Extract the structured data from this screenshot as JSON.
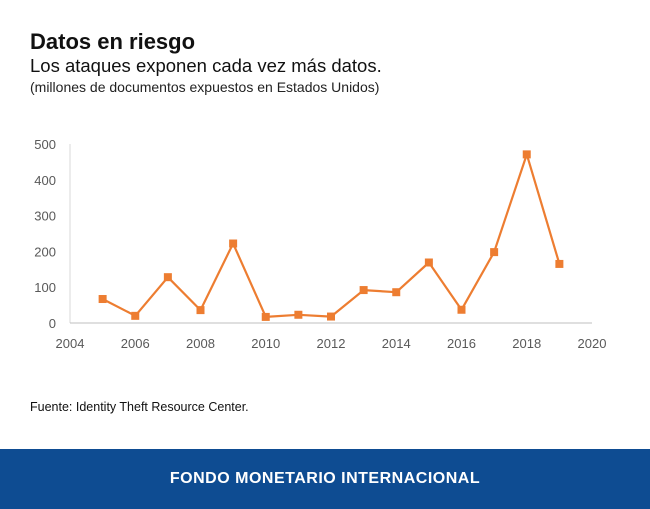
{
  "header": {
    "title": "Datos en riesgo",
    "subtitle": "Los ataques exponen cada vez más datos.",
    "note": "(millones de documentos expuestos en Estados Unidos)"
  },
  "source": "Fuente: Identity Theft Resource Center.",
  "footer": {
    "brand": "FONDO MONETARIO INTERNACIONAL"
  },
  "chart_data": {
    "type": "line",
    "title": "Datos en riesgo",
    "subtitle": "Los ataques exponen cada vez más datos.",
    "ylabel": "(millones de documentos expuestos en Estados Unidos)",
    "xlim": [
      2004,
      2020
    ],
    "ylim": [
      0,
      500
    ],
    "x_ticks": [
      2004,
      2006,
      2008,
      2010,
      2012,
      2014,
      2016,
      2018,
      2020
    ],
    "y_ticks": [
      0,
      100,
      200,
      300,
      400,
      500
    ],
    "grid": false,
    "legend": "none",
    "series": [
      {
        "color": "#ed7d31",
        "marker": "square",
        "x": [
          2005,
          2006,
          2007,
          2008,
          2009,
          2010,
          2011,
          2012,
          2013,
          2014,
          2015,
          2016,
          2017,
          2018,
          2019
        ],
        "y": [
          67,
          20,
          128,
          36,
          222,
          17,
          23,
          18,
          92,
          86,
          169,
          37,
          198,
          471,
          165
        ]
      }
    ]
  }
}
